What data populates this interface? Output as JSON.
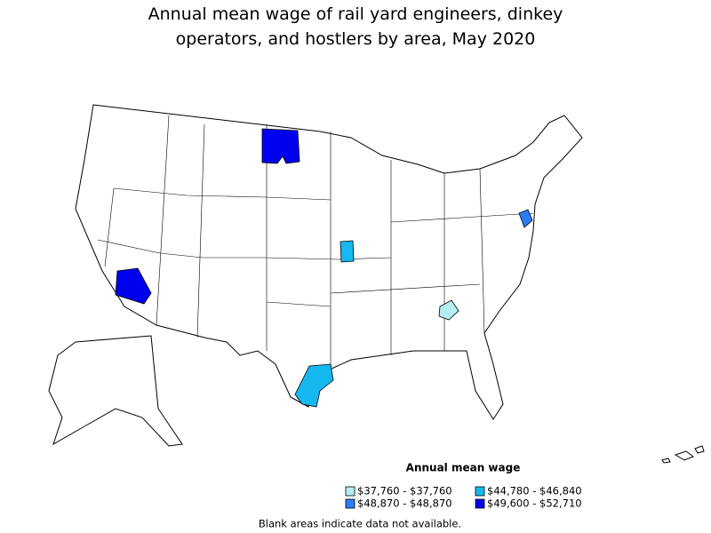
{
  "title": "Annual mean wage of rail yard engineers, dinkey operators, and hostlers by area, May 2020",
  "legend": {
    "title": "Annual mean wage",
    "items": [
      {
        "label": "$37,760 - $37,760",
        "color": "#b3eef0"
      },
      {
        "label": "$44,780 - $46,840",
        "color": "#16b8f0"
      },
      {
        "label": "$48,870 - $48,870",
        "color": "#2a7ef5"
      },
      {
        "label": "$49,600 - $52,710",
        "color": "#0000ee"
      }
    ]
  },
  "footnote": "Blank areas indicate data not available."
}
